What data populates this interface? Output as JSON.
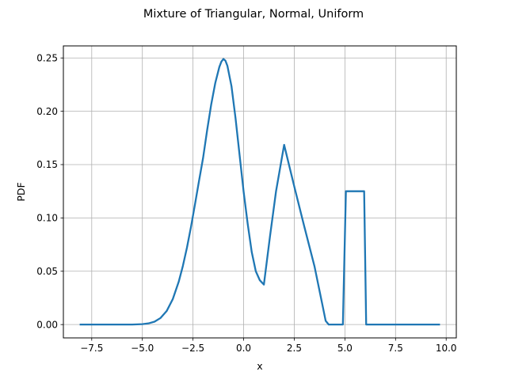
{
  "chart_data": {
    "type": "line",
    "title": "Mixture of Triangular, Normal, Uniform",
    "xlabel": "x",
    "ylabel": "PDF",
    "xlim": [
      -8.9,
      10.5
    ],
    "ylim": [
      -0.0125,
      0.2613
    ],
    "xticks": [
      -7.5,
      -5.0,
      -2.5,
      0.0,
      2.5,
      5.0,
      7.5,
      10.0
    ],
    "xtick_labels": [
      "−7.5",
      "−5.0",
      "−2.5",
      "0.0",
      "2.5",
      "5.0",
      "7.5",
      "10.0"
    ],
    "yticks": [
      0.0,
      0.05,
      0.1,
      0.15,
      0.2,
      0.25
    ],
    "ytick_labels": [
      "0.00",
      "0.05",
      "0.10",
      "0.15",
      "0.20",
      "0.25"
    ],
    "grid": true,
    "legend": "none",
    "series": [
      {
        "color": "#1f77b4",
        "x": [
          -8.05,
          -7.5,
          -7.0,
          -6.5,
          -6.0,
          -5.5,
          -5.0,
          -4.7,
          -4.4,
          -4.1,
          -3.8,
          -3.5,
          -3.2,
          -3.0,
          -2.8,
          -2.6,
          -2.4,
          -2.2,
          -2.0,
          -1.8,
          -1.6,
          -1.4,
          -1.2,
          -1.1,
          -1.0,
          -0.9,
          -0.8,
          -0.6,
          -0.4,
          -0.2,
          0.0,
          0.2,
          0.4,
          0.6,
          0.8,
          0.9,
          1.0,
          1.3,
          1.6,
          2.0,
          2.5,
          3.0,
          3.5,
          3.9,
          4.05,
          4.2,
          4.6,
          4.9,
          5.05,
          5.4,
          5.8,
          5.95,
          6.05,
          6.5,
          7.5,
          8.5,
          9.65
        ],
        "y": [
          0.0,
          0.0,
          0.0,
          0.0,
          0.0,
          0.0,
          0.0004,
          0.0011,
          0.0027,
          0.0062,
          0.0127,
          0.0238,
          0.0405,
          0.055,
          0.072,
          0.0915,
          0.113,
          0.135,
          0.1565,
          0.1825,
          0.2065,
          0.2265,
          0.2415,
          0.2465,
          0.249,
          0.2475,
          0.2425,
          0.2235,
          0.1935,
          0.159,
          0.1245,
          0.0945,
          0.068,
          0.05,
          0.0415,
          0.0395,
          0.0375,
          0.0825,
          0.125,
          0.1685,
          0.1295,
          0.0915,
          0.0545,
          0.0175,
          0.0035,
          0.0,
          0.0,
          0.0,
          0.125,
          0.125,
          0.125,
          0.125,
          0.0,
          0.0,
          0.0,
          0.0,
          0.0
        ]
      }
    ]
  }
}
